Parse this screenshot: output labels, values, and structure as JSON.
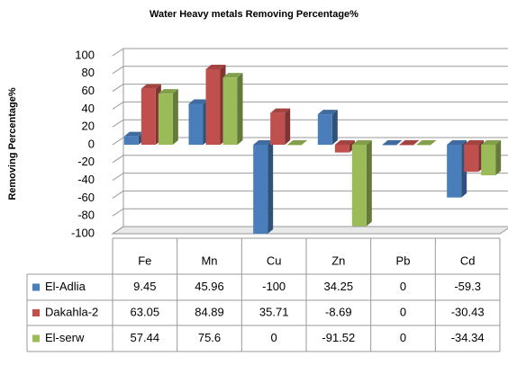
{
  "chart_data": {
    "type": "bar",
    "title": "Water Heavy metals Removing Percentage%",
    "y_label": "Removing Percentage%",
    "categories": [
      "Fe",
      "Mn",
      "Cu",
      "Zn",
      "Pb",
      "Cd"
    ],
    "series": [
      {
        "name": "El-Adlia",
        "color": "#4a7ebb",
        "values": [
          9.45,
          45.96,
          -100,
          34.25,
          0,
          -59.3
        ]
      },
      {
        "name": "Dakahla-2",
        "color": "#c0504d",
        "values": [
          63.05,
          84.89,
          35.71,
          -8.69,
          0,
          -30.43
        ]
      },
      {
        "name": "El-serw",
        "color": "#9bbb59",
        "values": [
          57.44,
          75.6,
          0,
          -91.52,
          0,
          -34.34
        ]
      }
    ],
    "ylim": [
      -100,
      100
    ],
    "yticks": [
      -100,
      -80,
      -60,
      -40,
      -20,
      0,
      20,
      40,
      60,
      80,
      100
    ],
    "grid": true
  }
}
